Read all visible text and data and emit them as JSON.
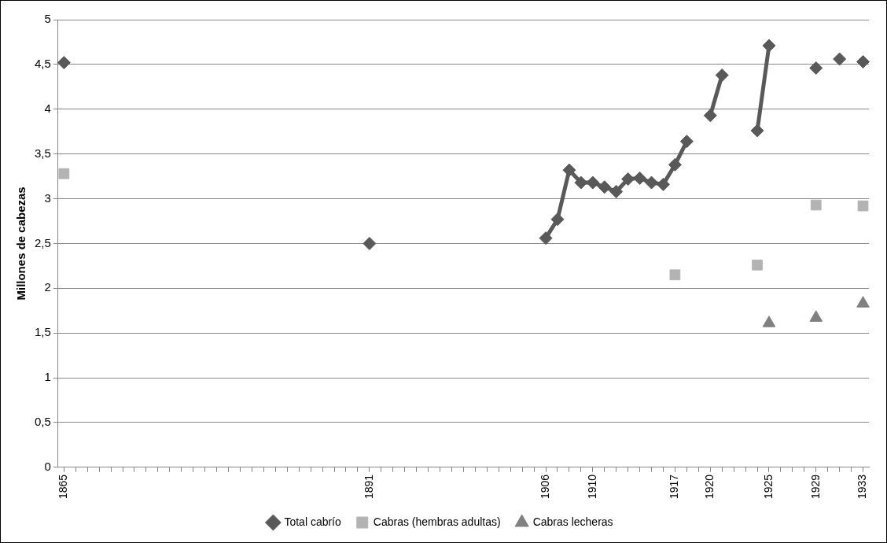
{
  "chart_data": {
    "type": "line",
    "ylabel": "Millones de cabezas",
    "categories": [
      "1865",
      null,
      null,
      null,
      null,
      null,
      null,
      null,
      null,
      null,
      null,
      null,
      null,
      null,
      null,
      null,
      null,
      null,
      null,
      null,
      null,
      null,
      null,
      null,
      null,
      null,
      "1891",
      null,
      null,
      null,
      null,
      null,
      null,
      null,
      null,
      null,
      null,
      null,
      null,
      null,
      null,
      "1906",
      null,
      null,
      null,
      "1910",
      null,
      null,
      null,
      null,
      null,
      null,
      "1917",
      null,
      null,
      "1920",
      null,
      null,
      null,
      null,
      "1925",
      null,
      null,
      null,
      "1929",
      null,
      null,
      null,
      "1933"
    ],
    "series": [
      {
        "name": "Total cabrío",
        "type": "line",
        "marker": "diamond",
        "color": "#595959",
        "values": [
          4.52,
          null,
          null,
          null,
          null,
          null,
          null,
          null,
          null,
          null,
          null,
          null,
          null,
          null,
          null,
          null,
          null,
          null,
          null,
          null,
          null,
          null,
          null,
          null,
          null,
          null,
          2.5,
          null,
          null,
          null,
          null,
          null,
          null,
          null,
          null,
          null,
          null,
          null,
          null,
          null,
          null,
          2.56,
          2.77,
          3.32,
          3.18,
          3.18,
          3.13,
          3.08,
          3.22,
          3.23,
          3.18,
          3.16,
          3.38,
          3.64,
          null,
          3.93,
          4.38,
          null,
          null,
          3.76,
          4.71,
          null,
          null,
          null,
          4.46,
          null,
          4.56,
          null,
          4.53
        ]
      },
      {
        "name": "Cabras (hembras adultas)",
        "type": "scatter",
        "marker": "square",
        "color": "#b3b3b3",
        "values": [
          3.28,
          null,
          null,
          null,
          null,
          null,
          null,
          null,
          null,
          null,
          null,
          null,
          null,
          null,
          null,
          null,
          null,
          null,
          null,
          null,
          null,
          null,
          null,
          null,
          null,
          null,
          null,
          null,
          null,
          null,
          null,
          null,
          null,
          null,
          null,
          null,
          null,
          null,
          null,
          null,
          null,
          null,
          null,
          null,
          null,
          null,
          null,
          null,
          null,
          null,
          null,
          null,
          2.15,
          null,
          null,
          null,
          null,
          null,
          null,
          2.26,
          null,
          null,
          null,
          null,
          2.93,
          null,
          null,
          null,
          2.92
        ]
      },
      {
        "name": "Cabras lecheras",
        "type": "scatter",
        "marker": "triangle",
        "color": "#808080",
        "values": [
          null,
          null,
          null,
          null,
          null,
          null,
          null,
          null,
          null,
          null,
          null,
          null,
          null,
          null,
          null,
          null,
          null,
          null,
          null,
          null,
          null,
          null,
          null,
          null,
          null,
          null,
          null,
          null,
          null,
          null,
          null,
          null,
          null,
          null,
          null,
          null,
          null,
          null,
          null,
          null,
          null,
          null,
          null,
          null,
          null,
          null,
          null,
          null,
          null,
          null,
          null,
          null,
          null,
          null,
          null,
          null,
          null,
          null,
          null,
          null,
          1.61,
          null,
          null,
          null,
          1.67,
          null,
          null,
          null,
          1.83
        ]
      }
    ],
    "ylim": [
      0,
      5
    ],
    "yticks": [
      0,
      {
        "value": 0.5,
        "label": "0,5"
      },
      1,
      {
        "value": 1.5,
        "label": "1,5"
      },
      2,
      {
        "value": 2.5,
        "label": "2,5"
      },
      3,
      {
        "value": 3.5,
        "label": "3,5"
      },
      4,
      {
        "value": 4.5,
        "label": "4,5"
      },
      5
    ],
    "grid": "y",
    "legend": "bottom"
  }
}
